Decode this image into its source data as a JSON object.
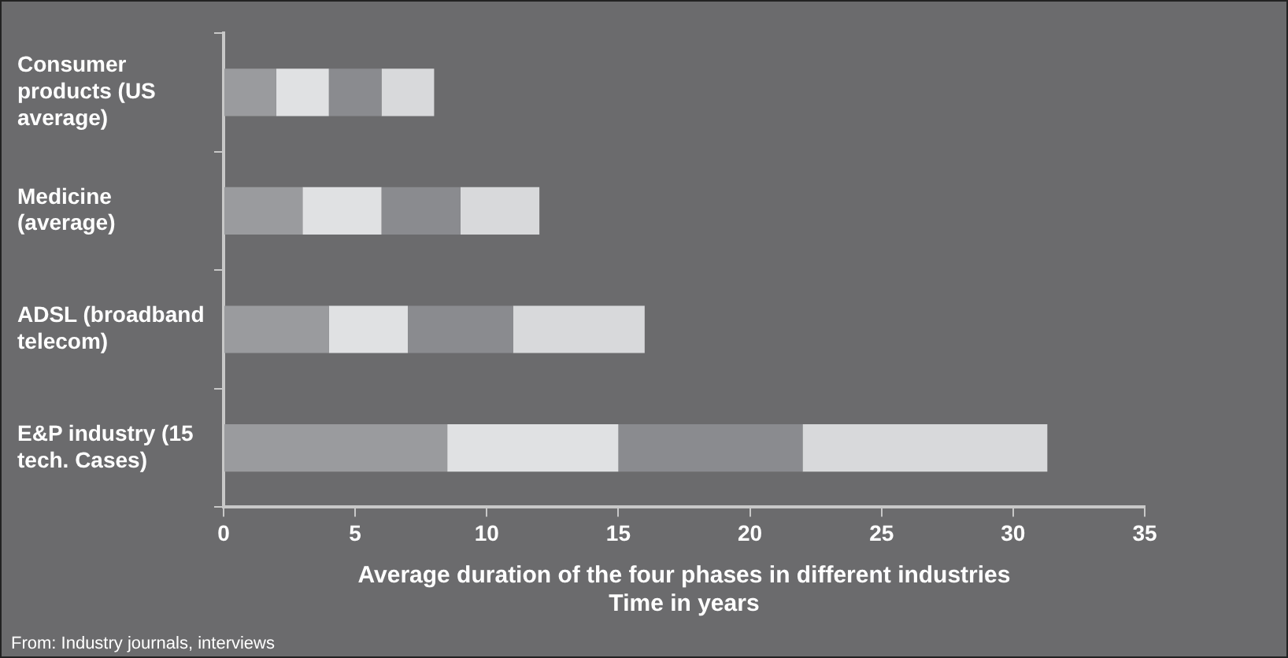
{
  "chart_data": {
    "type": "bar",
    "orientation": "horizontal",
    "stacked": true,
    "categories": [
      "Consumer products (US average)",
      "Medicine (average)",
      "ADSL (broadband telecom)",
      "E&P industry (15 tech. Cases)"
    ],
    "series": [
      {
        "color": "#9a9b9e",
        "values": [
          2,
          3,
          4,
          8.5
        ]
      },
      {
        "color": "#e0e1e3",
        "values": [
          2,
          3,
          3,
          6.5
        ]
      },
      {
        "color": "#8a8b8f",
        "values": [
          2,
          3,
          4,
          7
        ]
      },
      {
        "color": "#d8d9db",
        "values": [
          2,
          3,
          5,
          9.3
        ]
      }
    ],
    "xlim": [
      0,
      35
    ],
    "xticks": [
      0,
      5,
      10,
      15,
      20,
      25,
      30,
      35
    ],
    "xlabel": "Average duration of the four phases in different industries\nTime in years",
    "annotations": [
      "From: Industry journals, interviews"
    ],
    "grid": false,
    "legend": false
  }
}
